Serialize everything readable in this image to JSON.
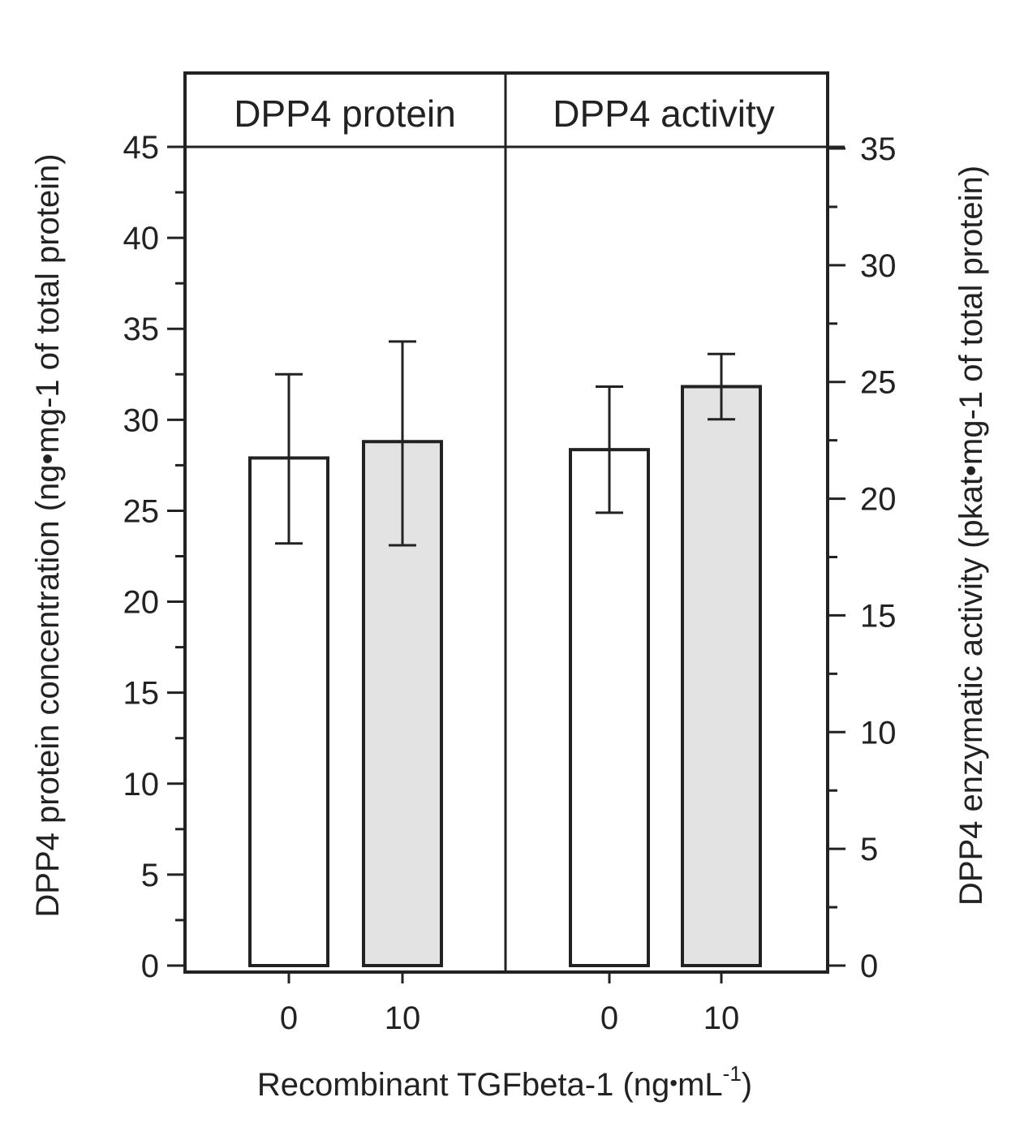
{
  "chart_data": {
    "type": "bar",
    "categories": [
      "0",
      "10"
    ],
    "xlabel": {
      "main": "Recombinant  TGFbeta-1 (ng",
      "dot": "•",
      "unit": "mL",
      "sup": "-1",
      "close": ")"
    },
    "left_axis": {
      "label": "DPP4 protein concentration (ng•mg-1 of total protein)",
      "ylim": [
        0,
        45
      ],
      "ticks": [
        "0",
        "5",
        "10",
        "15",
        "20",
        "25",
        "30",
        "35",
        "40",
        "45"
      ],
      "tick_values": [
        0,
        5,
        10,
        15,
        20,
        25,
        30,
        35,
        40,
        45
      ]
    },
    "right_axis": {
      "label": "DPP4 enzymatic activity (pkat•mg-1 of total protein)",
      "ylim": [
        0,
        35
      ],
      "ticks": [
        "0",
        "5",
        "10",
        "15",
        "20",
        "25",
        "30",
        "35"
      ],
      "tick_values": [
        0,
        5,
        10,
        15,
        20,
        25,
        30,
        35
      ]
    },
    "panels": [
      {
        "title": "DPP4 protein",
        "axis": "left",
        "values": [
          27.9,
          28.8
        ],
        "error_low": [
          23.2,
          23.1
        ],
        "error_high": [
          32.5,
          34.3
        ]
      },
      {
        "title": "DPP4 activity",
        "axis": "right",
        "values": [
          22.1,
          24.8
        ],
        "error_low": [
          19.4,
          23.4
        ],
        "error_high": [
          24.8,
          26.2
        ]
      }
    ],
    "colors": {
      "control": "#ffffff",
      "treated": "#e3e3e3",
      "stroke": "#222222"
    }
  }
}
